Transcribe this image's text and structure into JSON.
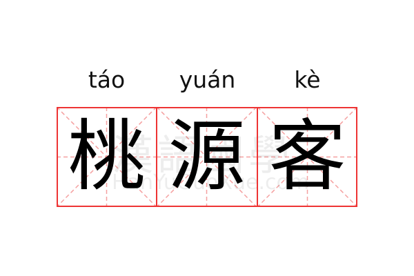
{
  "entries": [
    {
      "pinyin": "táo",
      "char": "桃"
    },
    {
      "pinyin": "yuán",
      "char": "源"
    },
    {
      "pinyin": "kè",
      "char": "客"
    }
  ],
  "watermark": {
    "chinese": "漢語國學",
    "latin": "HanYuGuoXue.com"
  },
  "colors": {
    "border": "#ee3333",
    "guide": "#f5a0a0"
  }
}
